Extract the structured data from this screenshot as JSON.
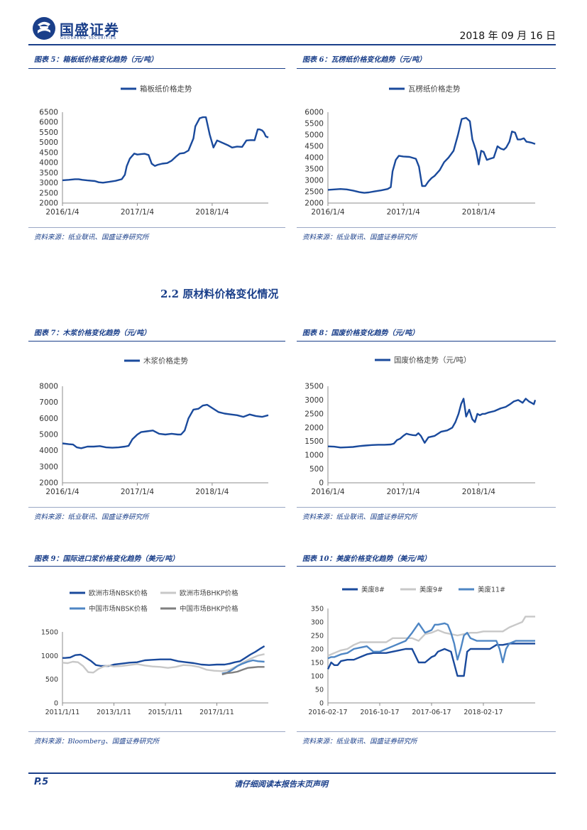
{
  "header": {
    "brand": "国盛证券",
    "brand_sub": "GUOSHENG SECURITIES",
    "date": "2018 年 09 月 16 日"
  },
  "section": {
    "title": "2.2 原材料价格变化情况"
  },
  "footer": {
    "page": "P.5",
    "disclaimer": "请仔细阅读本报告末页声明"
  },
  "figures": [
    {
      "id": "fig5",
      "title": "图表 5：箱板纸价格变化趋势（元/吨）",
      "source": "资料来源：纸业联讯、国盛证券研究所"
    },
    {
      "id": "fig6",
      "title": "图表 6：瓦楞纸价格变化趋势（元/吨）",
      "source": "资料来源：纸业联讯、国盛证券研究所"
    },
    {
      "id": "fig7",
      "title": "图表 7：木浆价格变化趋势（元/吨）",
      "source": "资料来源：纸业联讯、国盛证券研究所"
    },
    {
      "id": "fig8",
      "title": "图表 8：国废价格变化趋势（元/吨）",
      "source": "资料来源：纸业联讯、国盛证券研究所"
    },
    {
      "id": "fig9",
      "title": "图表 9：国际进口浆价格变化趋势（美元/吨）",
      "source": "资料来源：Bloomberg、国盛证券研究所"
    },
    {
      "id": "fig10",
      "title": "图表 10：美废价格变化趋势（美元/吨）",
      "source": "资料来源：纸业联讯、国盛证券研究所"
    }
  ],
  "chart_data": [
    {
      "id": "fig5",
      "type": "line",
      "ylim": [
        2000,
        6500
      ],
      "yticks": [
        2000,
        2500,
        3000,
        3500,
        4000,
        4500,
        5000,
        5500,
        6000,
        6500
      ],
      "xlim": [
        0,
        33
      ],
      "xtick_labels": [
        "2016/1/4",
        "2017/1/4",
        "2018/1/4"
      ],
      "xtick_pos": [
        0,
        12,
        24
      ],
      "series": [
        {
          "name": "箱板纸价格走势",
          "color": "#1a4a9c",
          "x": [
            0,
            1,
            2,
            2.6,
            3.2,
            4,
            5.2,
            5.8,
            6.5,
            7.5,
            8.5,
            9.5,
            10,
            10.3,
            10.8,
            11.5,
            12,
            12.7,
            13.2,
            13.8,
            14.3,
            14.8,
            15.3,
            16,
            16.8,
            17.5,
            18.2,
            18.8,
            19.5,
            20.2,
            21,
            21.3,
            22,
            22.5,
            23,
            23.6,
            24.2,
            24.8,
            26.6,
            27.2,
            28,
            28.8,
            29.5,
            30.2,
            30.8,
            31.3,
            31.6
          ],
          "y": [
            3130,
            3150,
            3180,
            3180,
            3150,
            3120,
            3090,
            3030,
            3010,
            3050,
            3100,
            3180,
            3400,
            3820,
            4200,
            4450,
            4400,
            4430,
            4440,
            4380,
            3950,
            3840,
            3900,
            3950,
            3980,
            4100,
            4300,
            4450,
            4480,
            4600,
            5200,
            5800,
            6200,
            6250,
            6250,
            5400,
            4750,
            5100,
            4850,
            4750,
            4800,
            4780,
            5100,
            5120,
            5110,
            5650,
            5650
          ],
          "tail": [
            [
              32,
              5600
            ],
            [
              32.3,
              5500
            ],
            [
              32.6,
              5300
            ],
            [
              33,
              5250
            ]
          ]
        }
      ]
    },
    {
      "id": "fig6",
      "type": "line",
      "ylim": [
        2000,
        6000
      ],
      "yticks": [
        2000,
        2500,
        3000,
        3500,
        4000,
        4500,
        5000,
        5500,
        6000
      ],
      "xlim": [
        0,
        33
      ],
      "xtick_labels": [
        "2016/1/4",
        "2017/1/4",
        "2018/1/4"
      ],
      "xtick_pos": [
        0,
        12,
        24
      ],
      "series": [
        {
          "name": "瓦楞纸价格走势",
          "color": "#1a4a9c",
          "x": [
            0,
            1,
            2,
            3,
            4,
            5,
            5.8,
            6.5,
            7.5,
            8.5,
            9.5,
            10,
            10.3,
            10.8,
            11.3,
            12,
            13,
            14,
            14.5,
            15,
            15.5,
            16,
            16.5,
            17,
            17.8,
            18.5,
            19.2,
            20,
            20.7,
            21.3,
            22,
            22.6,
            23,
            23.6,
            24,
            24.4,
            24.8,
            25.3,
            25.8,
            26.4,
            27,
            27.5,
            28,
            28.4,
            28.9,
            29.3,
            29.8,
            30.2,
            30.7,
            31.2,
            31.6,
            32,
            32.5,
            33
          ],
          "y": [
            2580,
            2600,
            2620,
            2600,
            2550,
            2480,
            2450,
            2470,
            2520,
            2560,
            2620,
            2700,
            3400,
            3900,
            4080,
            4050,
            4030,
            3950,
            3600,
            2750,
            2750,
            2950,
            3100,
            3200,
            3450,
            3800,
            4000,
            4300,
            5000,
            5700,
            5750,
            5600,
            4800,
            4300,
            3700,
            4300,
            4250,
            3900,
            3950,
            4000,
            4500,
            4400,
            4350,
            4450,
            4700,
            5150,
            5100,
            4800,
            4800,
            4850,
            4700,
            4680,
            4650,
            4600
          ]
        }
      ]
    },
    {
      "id": "fig7",
      "type": "line",
      "ylim": [
        2000,
        8000
      ],
      "yticks": [
        2000,
        3000,
        4000,
        5000,
        6000,
        7000,
        8000
      ],
      "xlim": [
        0,
        33
      ],
      "xtick_labels": [
        "2016/1/4",
        "2017/1/4",
        "2018/1/4"
      ],
      "xtick_pos": [
        0,
        12,
        24
      ],
      "series": [
        {
          "name": "木浆价格走势",
          "color": "#1a4a9c",
          "x": [
            0,
            1,
            1.7,
            2.3,
            3,
            4,
            5,
            6,
            7,
            8,
            9,
            10,
            10.6,
            11.2,
            12,
            12.6,
            13.5,
            14.5,
            15.5,
            16.5,
            17.5,
            18.5,
            19,
            19.6,
            20.2,
            21,
            21.8,
            22.5,
            23.2,
            24,
            25,
            26,
            27,
            28,
            29,
            30,
            31,
            32,
            33
          ],
          "y": [
            4450,
            4400,
            4380,
            4200,
            4150,
            4250,
            4250,
            4280,
            4200,
            4180,
            4200,
            4250,
            4300,
            4700,
            5000,
            5150,
            5200,
            5250,
            5050,
            5000,
            5050,
            5000,
            5000,
            5250,
            6000,
            6550,
            6600,
            6800,
            6850,
            6650,
            6400,
            6300,
            6250,
            6200,
            6100,
            6250,
            6150,
            6100,
            6200
          ]
        }
      ]
    },
    {
      "id": "fig8",
      "type": "line",
      "ylim": [
        0,
        3500
      ],
      "yticks": [
        0,
        500,
        1000,
        1500,
        2000,
        2500,
        3000,
        3500
      ],
      "xlim": [
        0,
        33
      ],
      "xtick_labels": [
        "2016/1/4",
        "2017/1/4",
        "2018/1/4"
      ],
      "xtick_pos": [
        0,
        12,
        24
      ],
      "series": [
        {
          "name": "国废价格走势（元/吨）",
          "color": "#1a4a9c",
          "x": [
            0,
            1,
            2,
            3,
            4,
            5,
            6,
            7,
            8,
            9,
            10,
            10.5,
            11,
            11.5,
            12,
            12.5,
            13,
            13.5,
            14,
            14.4,
            14.8,
            15.4,
            16,
            17,
            18,
            19,
            19.8,
            20.3,
            20.8,
            21.2,
            21.6,
            22,
            22.5,
            23,
            23.4,
            23.8,
            24.2,
            24.6,
            25,
            25.6,
            26.5,
            27.5,
            28.3,
            29,
            29.6,
            30.3,
            31,
            31.5,
            32,
            32.4,
            32.8,
            33
          ],
          "y": [
            1320,
            1310,
            1280,
            1290,
            1300,
            1330,
            1350,
            1370,
            1380,
            1380,
            1390,
            1420,
            1550,
            1600,
            1700,
            1780,
            1750,
            1730,
            1720,
            1800,
            1700,
            1450,
            1650,
            1700,
            1850,
            1900,
            2000,
            2200,
            2500,
            2850,
            3050,
            2400,
            2650,
            2300,
            2200,
            2500,
            2450,
            2500,
            2500,
            2550,
            2600,
            2700,
            2750,
            2850,
            2950,
            3000,
            2900,
            3050,
            2950,
            2900,
            2850,
            3000
          ]
        }
      ]
    },
    {
      "id": "fig9",
      "type": "line",
      "ylim": [
        0,
        1500
      ],
      "yticks": [
        0,
        500,
        1000,
        1500
      ],
      "xlim": [
        0,
        8
      ],
      "xtick_labels": [
        "2011/1/11",
        "2013/1/11",
        "2015/1/11",
        "2017/1/11"
      ],
      "xtick_pos": [
        0,
        2,
        4,
        6
      ],
      "series": [
        {
          "name": "欧洲市场NBSK价格",
          "color": "#1a4a9c",
          "x": [
            0,
            0.1,
            0.3,
            0.5,
            0.7,
            0.9,
            1.1,
            1.3,
            1.5,
            1.8,
            2.0,
            2.3,
            2.6,
            2.9,
            3.2,
            3.5,
            3.8,
            4.0,
            4.2,
            4.5,
            4.8,
            5.1,
            5.4,
            5.7,
            6.0,
            6.3,
            6.5,
            6.7,
            6.9,
            7.1,
            7.3,
            7.5,
            7.7,
            7.85
          ],
          "y": [
            950,
            950,
            960,
            1010,
            1020,
            960,
            890,
            800,
            780,
            780,
            810,
            830,
            850,
            860,
            900,
            910,
            920,
            920,
            920,
            880,
            860,
            840,
            810,
            800,
            810,
            810,
            830,
            860,
            880,
            950,
            1020,
            1080,
            1150,
            1200
          ]
        },
        {
          "name": "欧洲市场BHKP价格",
          "color": "#c8c8c8",
          "x": [
            0,
            0.2,
            0.4,
            0.6,
            0.8,
            1.0,
            1.2,
            1.4,
            1.6,
            1.8,
            2.0,
            2.3,
            2.6,
            2.9,
            3.2,
            3.5,
            3.8,
            4.1,
            4.4,
            4.7,
            5.0,
            5.3,
            5.6,
            5.9,
            6.2,
            6.5,
            6.8,
            7.0,
            7.3,
            7.6,
            7.85
          ],
          "y": [
            850,
            840,
            870,
            860,
            780,
            650,
            640,
            720,
            770,
            790,
            770,
            780,
            800,
            820,
            790,
            770,
            760,
            740,
            760,
            800,
            790,
            760,
            700,
            680,
            670,
            700,
            780,
            850,
            930,
            1000,
            1030
          ]
        },
        {
          "name": "中国市场NBSK价格",
          "color": "#4e86c4",
          "x": [
            6.2,
            6.4,
            6.6,
            6.8,
            7.0,
            7.2,
            7.4,
            7.6,
            7.85
          ],
          "y": [
            620,
            640,
            700,
            780,
            830,
            870,
            900,
            880,
            870
          ]
        },
        {
          "name": "中国市场BHKP价格",
          "color": "#7f7f7f",
          "x": [
            6.2,
            6.4,
            6.6,
            6.8,
            7.0,
            7.2,
            7.4,
            7.6,
            7.85
          ],
          "y": [
            600,
            630,
            640,
            660,
            700,
            740,
            750,
            760,
            760
          ]
        }
      ]
    },
    {
      "id": "fig10",
      "type": "line",
      "ylim": [
        0,
        350
      ],
      "yticks": [
        0,
        50,
        100,
        150,
        200,
        250,
        300,
        350
      ],
      "xlim": [
        0,
        32
      ],
      "xtick_labels": [
        "2016-02-17",
        "2016-10-17",
        "2017-06-17",
        "2018-02-17"
      ],
      "xtick_pos": [
        0,
        8,
        16,
        24
      ],
      "series": [
        {
          "name": "美废8#",
          "color": "#1a4a9c",
          "x": [
            0,
            0.5,
            1,
            1.5,
            2,
            3,
            4,
            5,
            6,
            7,
            8,
            9,
            10,
            11,
            12,
            13,
            14,
            15,
            16,
            16.5,
            17,
            18,
            19,
            20,
            21,
            21.5,
            22,
            22.5,
            23,
            24,
            25,
            26,
            27,
            28,
            29,
            30,
            31,
            32
          ],
          "y": [
            125,
            150,
            140,
            140,
            155,
            160,
            160,
            170,
            180,
            185,
            185,
            185,
            190,
            195,
            200,
            200,
            150,
            150,
            170,
            175,
            190,
            200,
            190,
            100,
            100,
            190,
            200,
            200,
            200,
            200,
            200,
            215,
            215,
            220,
            220,
            220,
            220,
            220
          ]
        },
        {
          "name": "美废9#",
          "color": "#c8c8c8",
          "x": [
            0,
            0.5,
            1,
            1.5,
            2,
            3,
            4,
            5,
            6,
            7,
            8,
            9,
            10,
            11,
            12,
            13,
            14,
            15,
            16,
            17,
            18,
            19,
            20,
            21,
            22,
            23,
            24,
            25,
            26,
            27,
            28,
            29,
            30,
            30.5,
            31,
            32
          ],
          "y": [
            175,
            180,
            185,
            190,
            195,
            200,
            215,
            225,
            225,
            225,
            225,
            225,
            240,
            240,
            240,
            240,
            230,
            255,
            260,
            270,
            260,
            255,
            250,
            255,
            260,
            260,
            265,
            265,
            265,
            265,
            280,
            290,
            300,
            320,
            320,
            320
          ]
        },
        {
          "name": "美废11#",
          "color": "#4e86c4",
          "x": [
            0,
            0.5,
            1,
            1.5,
            2,
            3,
            4,
            5,
            6,
            7,
            8,
            9,
            10,
            11,
            12,
            13,
            14,
            15,
            16,
            16.5,
            17,
            18,
            18.5,
            19,
            19.5,
            20,
            20.5,
            21,
            21.5,
            22,
            23,
            24,
            25,
            26,
            26.5,
            27,
            27.5,
            28,
            29,
            30,
            31,
            32
          ],
          "y": [
            165,
            170,
            170,
            175,
            180,
            185,
            200,
            205,
            210,
            190,
            190,
            200,
            210,
            220,
            230,
            260,
            295,
            260,
            270,
            290,
            290,
            295,
            290,
            260,
            220,
            160,
            200,
            250,
            260,
            240,
            230,
            230,
            230,
            230,
            200,
            150,
            200,
            220,
            230,
            230,
            230,
            230
          ]
        }
      ]
    }
  ]
}
